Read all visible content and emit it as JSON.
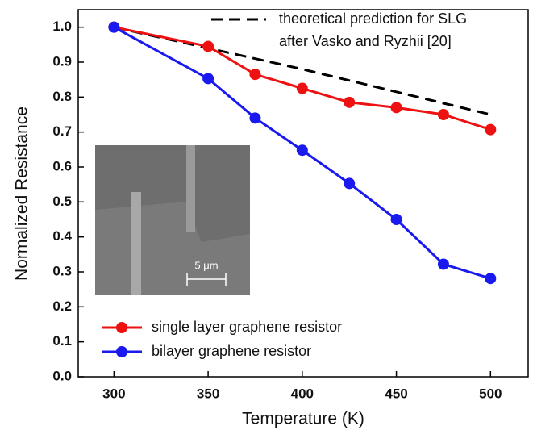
{
  "chart_data": {
    "type": "line",
    "x_label": "Temperature (K)",
    "y_label": "Normalized  Resistance",
    "xlim": [
      281,
      520
    ],
    "ylim": [
      0,
      1.05
    ],
    "xticks": [
      300,
      350,
      400,
      450,
      500
    ],
    "yticks": [
      {
        "value": 0,
        "label": "0.0"
      },
      0.1,
      0.2,
      0.3,
      0.4,
      0.5,
      0.6,
      0.7,
      0.8,
      0.9,
      {
        "value": 1,
        "label": "1.0"
      }
    ],
    "series": [
      {
        "name": "theoretical prediction for SLG",
        "color": "#000000",
        "line_style": "dashed",
        "x": [
          300,
          350,
          400,
          450,
          500
        ],
        "values": [
          1.0,
          0.94,
          0.88,
          0.815,
          0.75
        ]
      },
      {
        "name": "single layer graphene resistor",
        "color": "#ee1111",
        "line_style": "solid",
        "marker": "circle",
        "x": [
          300,
          350,
          375,
          400,
          425,
          450,
          475,
          500
        ],
        "values": [
          1.0,
          0.945,
          0.865,
          0.825,
          0.785,
          0.77,
          0.75,
          0.707
        ]
      },
      {
        "name": "bilayer graphene resistor",
        "color": "#1a1aee",
        "line_style": "solid",
        "marker": "circle",
        "x": [
          300,
          350,
          375,
          400,
          425,
          450,
          475,
          500
        ],
        "values": [
          1.0,
          0.853,
          0.74,
          0.648,
          0.553,
          0.45,
          0.322,
          0.281
        ]
      }
    ],
    "legend_note": "after  Vasko and Ryzhii [20]",
    "inset_scale_label": "5 μm"
  }
}
